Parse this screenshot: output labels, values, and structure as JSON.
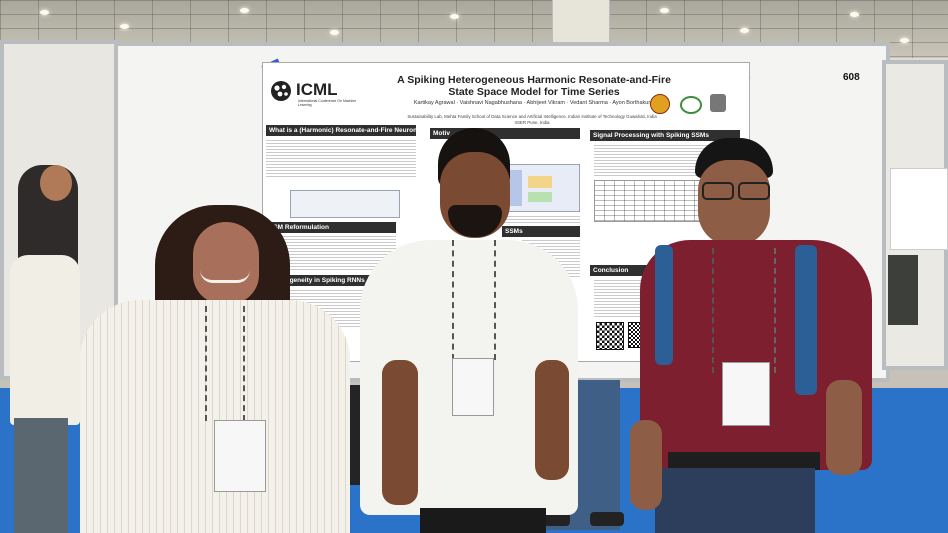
{
  "poster": {
    "conference_logo": "ICML",
    "conference_subtitle": "International Conference On Machine Learning",
    "title": "A Spiking Heterogeneous Harmonic Resonate-and-Fire State Space Model for Time Series",
    "authors": "Kartikay Agrawal · Vaishnavi Nagabhushana · Abhijeet Vikram · Vedant Sharma · Ayon Borthakur",
    "affiliation_1": "Sustainability Lab, Mehta Family School of Data Science and Artificial Intelligence, Indian Institute of Technology Guwahati, India",
    "affiliation_2": "IISER Pune, India",
    "board_number": "608",
    "sections": {
      "harmonic": "What is a (Harmonic) Resonate-and-Fire Neuron?",
      "motivation": "Motiv",
      "signal": "Signal Processing with Spiking SSMs",
      "ssm_reform": "SSM Reformulation",
      "heterogeneity": "Heterogeneity in Spiking RNNs",
      "ssms": "SSMs",
      "conclusion": "Conclusion"
    }
  },
  "colors": {
    "floor": "#2a73c8",
    "section_header": "#2f2f2f",
    "tape": "#2f5fcf"
  }
}
